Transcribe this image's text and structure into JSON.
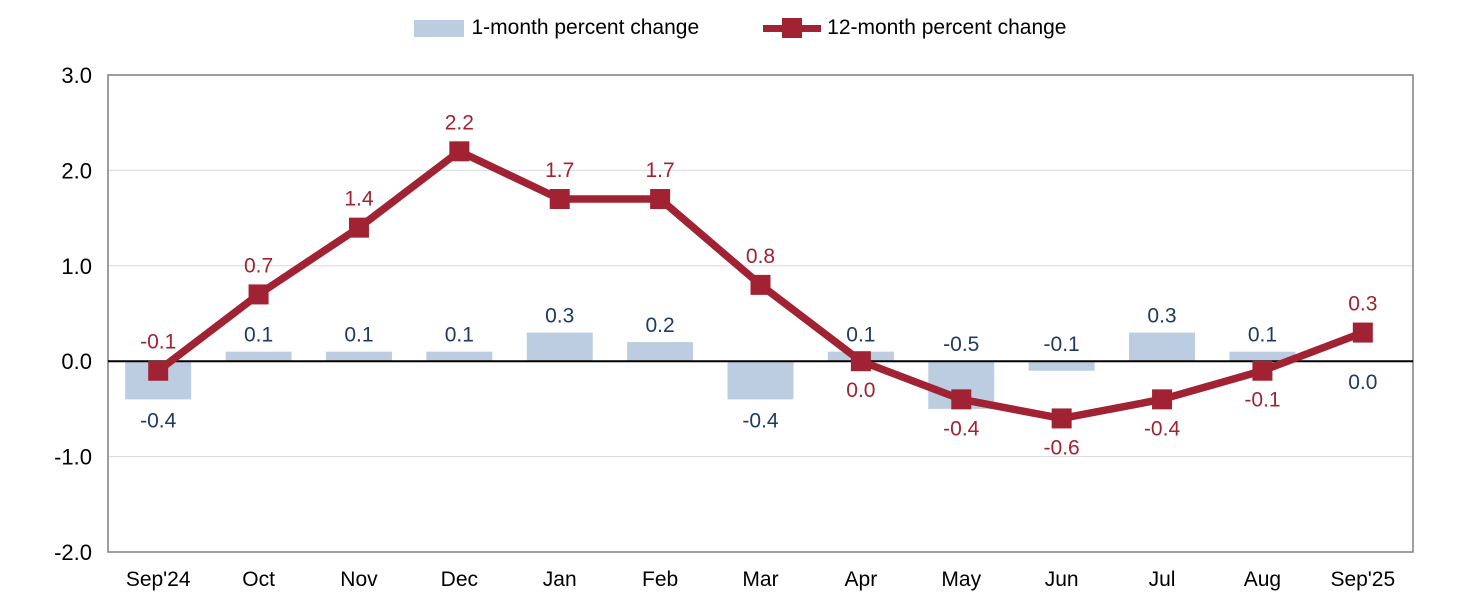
{
  "chart_data": {
    "type": "bar+line combo",
    "categories": [
      "Sep'24",
      "Oct",
      "Nov",
      "Dec",
      "Jan",
      "Feb",
      "Mar",
      "Apr",
      "May",
      "Jun",
      "Jul",
      "Aug",
      "Sep'25"
    ],
    "series": [
      {
        "name": "1-month percent change",
        "type": "bar",
        "color": "#bdcde1",
        "label_color": "#1f3a64",
        "values": [
          -0.4,
          0.1,
          0.1,
          0.1,
          0.3,
          0.2,
          -0.4,
          0.1,
          -0.5,
          -0.1,
          0.3,
          0.1,
          0.0
        ],
        "labels": [
          "-0.4",
          "0.1",
          "0.1",
          "0.1",
          "0.3",
          "0.2",
          "-0.4",
          "0.1",
          "-0.5",
          "-0.1",
          "0.3",
          "0.1",
          "0.0"
        ],
        "label_side": [
          "below",
          "above",
          "above",
          "above",
          "above",
          "above",
          "below",
          "above",
          "above",
          "above",
          "above",
          "above",
          "below"
        ]
      },
      {
        "name": "12-month percent change",
        "type": "line",
        "color": "#a12333",
        "label_color": "#a12333",
        "values": [
          -0.1,
          0.7,
          1.4,
          2.2,
          1.7,
          1.7,
          0.8,
          0.0,
          -0.4,
          -0.6,
          -0.4,
          -0.1,
          0.3
        ],
        "labels": [
          "-0.1",
          "0.7",
          "1.4",
          "2.2",
          "1.7",
          "1.7",
          "0.8",
          "0.0",
          "-0.4",
          "-0.6",
          "-0.4",
          "-0.1",
          "0.3"
        ],
        "label_side": [
          "above",
          "above",
          "above",
          "above",
          "above",
          "above",
          "above",
          "below",
          "below",
          "below",
          "below",
          "below",
          "above"
        ]
      }
    ],
    "title": "",
    "xlabel": "",
    "ylabel": "",
    "ylim": [
      -2.0,
      3.0
    ],
    "ytick_labels": [
      "3.0",
      "2.0",
      "1.0",
      "0.0",
      "-1.0",
      "-2.0"
    ],
    "ytick_values": [
      3.0,
      2.0,
      1.0,
      0.0,
      -1.0,
      -2.0
    ],
    "grid": true,
    "legend_position": "top",
    "colors": {
      "gridline": "#d9d9d9",
      "plot_border": "#7f7f7f",
      "zero_line": "#000000",
      "axis_text": "#000000"
    }
  }
}
